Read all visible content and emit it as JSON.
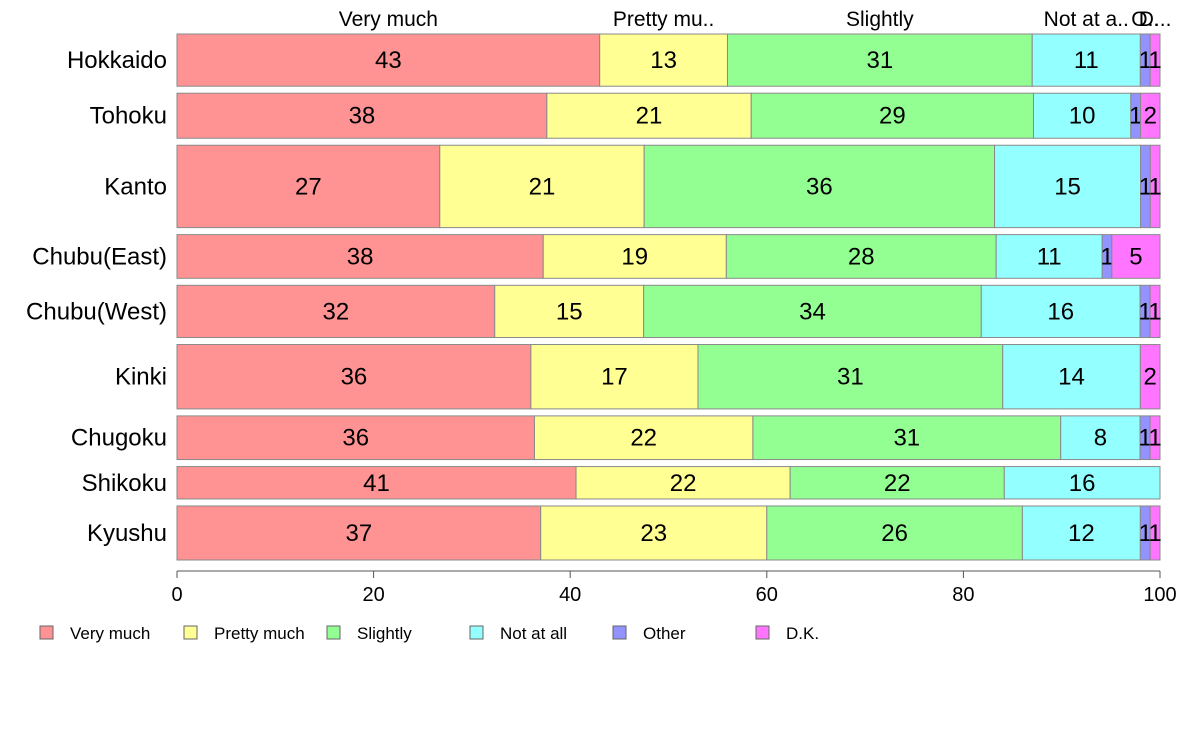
{
  "chart_data": {
    "type": "bar",
    "orientation": "horizontal",
    "stacked": true,
    "categories": [
      "Hokkaido",
      "Tohoku",
      "Kanto",
      "Chubu(East)",
      "Chubu(West)",
      "Kinki",
      "Chugoku",
      "Shikoku",
      "Kyushu"
    ],
    "series": [
      {
        "name": "Very much",
        "values": [
          43,
          38,
          27,
          38,
          32,
          36,
          36,
          41,
          37
        ]
      },
      {
        "name": "Pretty much",
        "values": [
          13,
          21,
          21,
          19,
          15,
          17,
          22,
          22,
          23
        ]
      },
      {
        "name": "Slightly",
        "values": [
          31,
          29,
          36,
          28,
          34,
          31,
          31,
          22,
          26
        ]
      },
      {
        "name": "Not at all",
        "values": [
          11,
          10,
          15,
          11,
          16,
          14,
          8,
          16,
          12
        ]
      },
      {
        "name": "Other",
        "values": [
          1,
          1,
          1,
          1,
          1,
          0,
          1,
          0,
          1
        ]
      },
      {
        "name": "D.K.",
        "values": [
          1,
          2,
          1,
          5,
          1,
          2,
          1,
          0,
          1
        ]
      }
    ],
    "relative_row_heights": [
      0.116,
      0.1,
      0.183,
      0.097,
      0.116,
      0.143,
      0.097,
      0.072,
      0.12
    ],
    "data_labels_shown": [
      [
        "43",
        "13",
        "31",
        "11",
        "1",
        "1"
      ],
      [
        "38",
        "21",
        "29",
        "10",
        "1",
        "2"
      ],
      [
        "27",
        "21",
        "36",
        "15",
        "1",
        "1"
      ],
      [
        "38",
        "19",
        "28",
        "11",
        "1",
        "5"
      ],
      [
        "32",
        "15",
        "34",
        "16",
        "1",
        "1"
      ],
      [
        "36",
        "17",
        "31",
        "14",
        "",
        "2"
      ],
      [
        "36",
        "22",
        "31",
        "8",
        "1",
        "1"
      ],
      [
        "41",
        "22",
        "22",
        "16",
        "",
        ""
      ],
      [
        "37",
        "23",
        "26",
        "12",
        "1",
        "1"
      ]
    ],
    "top_labels": [
      "Very much",
      "Pretty mu..",
      "Slightly",
      "Not at a..",
      "O..",
      "D..."
    ],
    "xlim": [
      0,
      100
    ],
    "xticks": [
      0,
      20,
      40,
      60,
      80,
      100
    ],
    "colors": [
      "#ff9393",
      "#ffff93",
      "#93ff93",
      "#93ffff",
      "#9393ff",
      "#ff75ff"
    ],
    "legend_position": "bottom",
    "grid": false
  }
}
